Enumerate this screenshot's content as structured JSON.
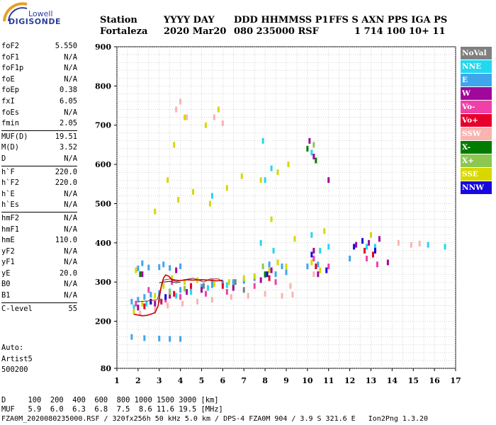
{
  "logo": {
    "line1": "Lowell",
    "line2": "DIGISONDE"
  },
  "header": {
    "labels": [
      "Station",
      "YYYY DAY",
      "DDD HHMMSS P1",
      "FFS S AXN PPS IGA PS"
    ],
    "values": [
      "Fortaleza",
      "2020 Mar20",
      "080 235000 RSF",
      "1 714 100 10+ 11"
    ]
  },
  "params": {
    "group1": [
      {
        "name": "foF2",
        "value": "5.550"
      },
      {
        "name": "foF1",
        "value": "N/A"
      },
      {
        "name": "foF1p",
        "value": "N/A"
      },
      {
        "name": "foE",
        "value": "N/A"
      },
      {
        "name": "foEp",
        "value": "0.38"
      },
      {
        "name": "fxI",
        "value": "6.05"
      },
      {
        "name": "foEs",
        "value": "N/A"
      },
      {
        "name": "fmin",
        "value": "2.05"
      }
    ],
    "group2": [
      {
        "name": "MUF(D)",
        "value": "19.51"
      },
      {
        "name": "M(D)",
        "value": "3.52"
      },
      {
        "name": "D",
        "value": "N/A"
      }
    ],
    "group3": [
      {
        "name": "h`F",
        "value": "220.0"
      },
      {
        "name": "h`F2",
        "value": "220.0"
      },
      {
        "name": "h`E",
        "value": "N/A"
      },
      {
        "name": "h`Es",
        "value": "N/A"
      }
    ],
    "group4": [
      {
        "name": "hmF2",
        "value": "N/A"
      },
      {
        "name": "hmF1",
        "value": "N/A"
      },
      {
        "name": "hmE",
        "value": "110.0"
      },
      {
        "name": "yF2",
        "value": "N/A"
      },
      {
        "name": "yF1",
        "value": "N/A"
      },
      {
        "name": "yE",
        "value": "20.0"
      },
      {
        "name": "B0",
        "value": "N/A"
      },
      {
        "name": "B1",
        "value": "N/A"
      }
    ],
    "group5": [
      {
        "name": "C-level",
        "value": "55"
      }
    ]
  },
  "auto": {
    "line1": "Auto:",
    "line2": "Artist5",
    "line3": "500200"
  },
  "legend": [
    {
      "label": "NoVal",
      "color": "#808080"
    },
    {
      "label": "NNE",
      "color": "#22d8f0"
    },
    {
      "label": "E",
      "color": "#3fa6ec"
    },
    {
      "label": "W",
      "color": "#a0089c"
    },
    {
      "label": "Vo-",
      "color": "#f040a8"
    },
    {
      "label": "Vo+",
      "color": "#e8002c"
    },
    {
      "label": "SSW",
      "color": "#f8b4b0"
    },
    {
      "label": "X-",
      "color": "#007c00"
    },
    {
      "label": "X+",
      "color": "#8cc850"
    },
    {
      "label": "SSE",
      "color": "#d8d800"
    },
    {
      "label": "NNW",
      "color": "#1808e0"
    }
  ],
  "footer": {
    "line1": "D     100  200  400  600  800 1000 1500 3000 [km]",
    "line2": "MUF   5.9  6.0  6.3  6.8  7.5  8.6 11.6 19.5 [MHz]",
    "line3": "FZA0M_2020080235000.RSF / 320fx256h 50 kHz 5.0 km / DPS-4 FZA0M 904 / 3.9 S 321.6 E   Ion2Png 1.3.20"
  },
  "chart_data": {
    "type": "scatter",
    "title": "",
    "xlabel": "",
    "ylabel": "",
    "xlim": [
      1,
      17
    ],
    "ylim": [
      80,
      900
    ],
    "xticks": [
      1,
      2,
      3,
      4,
      5,
      6,
      7,
      8,
      9,
      10,
      11,
      12,
      13,
      14,
      15,
      16,
      17
    ],
    "yticks": [
      80,
      200,
      300,
      400,
      500,
      600,
      700,
      800,
      900
    ],
    "grid": true,
    "legend_position": "right",
    "series": [
      {
        "name": "E",
        "points": [
          [
            1.7,
            250
          ],
          [
            2.0,
            255
          ],
          [
            2.3,
            262
          ],
          [
            2.6,
            268
          ],
          [
            3.0,
            272
          ],
          [
            3.5,
            276
          ],
          [
            4.0,
            280
          ],
          [
            4.5,
            284
          ],
          [
            5.0,
            288
          ],
          [
            5.5,
            292
          ],
          [
            6.0,
            297
          ],
          [
            6.5,
            300
          ],
          [
            7.0,
            303
          ],
          [
            7.5,
            310
          ],
          [
            8.0,
            318
          ],
          [
            8.5,
            320
          ],
          [
            9.0,
            325
          ],
          [
            10.0,
            340
          ],
          [
            10.5,
            345
          ],
          [
            1.7,
            160
          ],
          [
            2.3,
            157
          ],
          [
            3.0,
            156
          ],
          [
            3.5,
            155
          ],
          [
            4.0,
            155
          ],
          [
            2.0,
            335
          ],
          [
            2.5,
            337
          ],
          [
            3.0,
            338
          ],
          [
            3.5,
            336
          ],
          [
            4.0,
            340
          ],
          [
            2.2,
            348
          ],
          [
            3.2,
            345
          ],
          [
            5.5,
            300
          ],
          [
            6.5,
            290
          ],
          [
            8.2,
            345
          ],
          [
            8.8,
            340
          ],
          [
            12.0,
            360
          ]
        ]
      },
      {
        "name": "NNE",
        "points": [
          [
            1.8,
            235
          ],
          [
            2.4,
            245
          ],
          [
            3.0,
            255
          ],
          [
            3.8,
            265
          ],
          [
            4.5,
            275
          ],
          [
            5.3,
            285
          ],
          [
            6.2,
            292
          ],
          [
            7.8,
            400
          ],
          [
            8.4,
            380
          ],
          [
            10.2,
            420
          ],
          [
            10.6,
            380
          ],
          [
            8.0,
            560
          ],
          [
            8.3,
            590
          ],
          [
            10.2,
            630
          ],
          [
            11.0,
            390
          ],
          [
            12.8,
            390
          ],
          [
            13.2,
            390
          ],
          [
            15.7,
            395
          ],
          [
            16.5,
            390
          ],
          [
            7.9,
            660
          ],
          [
            5.5,
            520
          ]
        ]
      },
      {
        "name": "SSE",
        "points": [
          [
            1.8,
            225
          ],
          [
            2.2,
            245
          ],
          [
            2.8,
            265
          ],
          [
            3.2,
            290
          ],
          [
            3.6,
            310
          ],
          [
            4.2,
            300
          ],
          [
            4.8,
            305
          ],
          [
            5.6,
            295
          ],
          [
            6.3,
            300
          ],
          [
            7.0,
            310
          ],
          [
            7.5,
            315
          ],
          [
            8.2,
            330
          ],
          [
            8.6,
            350
          ],
          [
            9.0,
            340
          ],
          [
            10.2,
            350
          ],
          [
            10.6,
            330
          ],
          [
            3.4,
            560
          ],
          [
            3.9,
            510
          ],
          [
            4.6,
            530
          ],
          [
            5.4,
            500
          ],
          [
            6.2,
            540
          ],
          [
            6.9,
            570
          ],
          [
            7.8,
            560
          ],
          [
            8.6,
            580
          ],
          [
            9.1,
            600
          ],
          [
            3.7,
            650
          ],
          [
            4.2,
            720
          ],
          [
            5.2,
            700
          ],
          [
            5.8,
            740
          ],
          [
            2.8,
            480
          ],
          [
            1.9,
            330
          ],
          [
            8.3,
            460
          ],
          [
            9.4,
            410
          ],
          [
            13.0,
            420
          ],
          [
            10.8,
            430
          ]
        ]
      },
      {
        "name": "SSW",
        "points": [
          [
            2.1,
            220
          ],
          [
            2.8,
            230
          ],
          [
            3.4,
            240
          ],
          [
            4.1,
            245
          ],
          [
            4.8,
            250
          ],
          [
            5.5,
            255
          ],
          [
            6.4,
            262
          ],
          [
            7.2,
            265
          ],
          [
            8.0,
            270
          ],
          [
            8.8,
            265
          ],
          [
            9.3,
            268
          ],
          [
            10.3,
            320
          ],
          [
            14.3,
            400
          ],
          [
            14.9,
            395
          ],
          [
            15.3,
            398
          ],
          [
            4.0,
            760
          ],
          [
            3.8,
            740
          ],
          [
            4.3,
            720
          ],
          [
            5.6,
            720
          ],
          [
            6.0,
            705
          ],
          [
            9.2,
            290
          ]
        ]
      },
      {
        "name": "Vo-",
        "points": [
          [
            1.9,
            245
          ],
          [
            2.6,
            250
          ],
          [
            3.3,
            255
          ],
          [
            4.0,
            262
          ],
          [
            5.2,
            270
          ],
          [
            6.2,
            275
          ],
          [
            7.5,
            290
          ],
          [
            8.5,
            300
          ],
          [
            10.3,
            360
          ],
          [
            11.0,
            340
          ],
          [
            12.8,
            360
          ],
          [
            13.3,
            345
          ],
          [
            2.5,
            280
          ],
          [
            3.6,
            300
          ]
        ]
      },
      {
        "name": "Vo+",
        "points": [
          [
            2.3,
            238
          ],
          [
            3.1,
            250
          ],
          [
            3.7,
            270
          ],
          [
            4.5,
            290
          ],
          [
            6.0,
            290
          ],
          [
            8.2,
            310
          ],
          [
            10.4,
            340
          ],
          [
            12.7,
            380
          ],
          [
            13.1,
            370
          ]
        ]
      },
      {
        "name": "W",
        "points": [
          [
            2.0,
            235
          ],
          [
            2.8,
            245
          ],
          [
            3.5,
            265
          ],
          [
            4.3,
            275
          ],
          [
            5.0,
            280
          ],
          [
            6.5,
            285
          ],
          [
            7.8,
            305
          ],
          [
            8.3,
            330
          ],
          [
            10.3,
            380
          ],
          [
            10.5,
            320
          ],
          [
            10.1,
            660
          ],
          [
            10.3,
            620
          ],
          [
            11.0,
            560
          ],
          [
            12.3,
            395
          ],
          [
            12.9,
            400
          ],
          [
            13.4,
            410
          ],
          [
            13.8,
            350
          ],
          [
            2.2,
            320
          ],
          [
            3.8,
            330
          ]
        ]
      },
      {
        "name": "NNW",
        "points": [
          [
            2.6,
            250
          ],
          [
            3.3,
            262
          ],
          [
            8.1,
            320
          ],
          [
            10.2,
            370
          ],
          [
            10.9,
            330
          ],
          [
            12.2,
            390
          ],
          [
            12.6,
            405
          ],
          [
            13.2,
            380
          ]
        ]
      },
      {
        "name": "X-",
        "points": [
          [
            8.0,
            320
          ],
          [
            10.0,
            640
          ],
          [
            10.4,
            610
          ],
          [
            2.1,
            320
          ]
        ]
      },
      {
        "name": "X+",
        "points": [
          [
            3.5,
            275
          ],
          [
            4.2,
            283
          ],
          [
            7.9,
            340
          ],
          [
            10.3,
            650
          ]
        ]
      },
      {
        "name": "NoVal",
        "points": [
          [
            5.1,
            290
          ],
          [
            6.6,
            300
          ],
          [
            7.0,
            280
          ]
        ]
      }
    ],
    "trace": {
      "color": "#c80000",
      "points": [
        [
          1.8,
          218
        ],
        [
          2.0,
          216
        ],
        [
          2.2,
          214
        ],
        [
          2.4,
          215
        ],
        [
          2.6,
          218
        ],
        [
          2.8,
          222
        ],
        [
          2.95,
          240
        ],
        [
          3.0,
          260
        ],
        [
          3.1,
          290
        ],
        [
          3.2,
          310
        ],
        [
          3.3,
          318
        ],
        [
          3.45,
          315
        ],
        [
          3.6,
          306
        ],
        [
          3.8,
          302
        ],
        [
          4.0,
          304
        ],
        [
          4.3,
          306
        ],
        [
          4.6,
          305
        ],
        [
          5.0,
          306
        ],
        [
          5.3,
          305
        ],
        [
          5.55,
          304
        ],
        [
          5.7,
          303
        ],
        [
          5.9,
          304
        ],
        [
          6.0,
          305
        ]
      ]
    },
    "envelopes": [
      {
        "color": "#8a3030",
        "points": [
          [
            2.0,
            250
          ],
          [
            2.5,
            252
          ],
          [
            2.9,
            255
          ],
          [
            3.05,
            280
          ],
          [
            3.2,
            305
          ],
          [
            3.5,
            308
          ],
          [
            4.0,
            304
          ],
          [
            4.6,
            310
          ],
          [
            5.1,
            300
          ],
          [
            5.4,
            308
          ],
          [
            5.8,
            308
          ],
          [
            6.0,
            300
          ]
        ]
      },
      {
        "color": "#1a1a1a",
        "points": [
          [
            3.0,
            298
          ],
          [
            3.2,
            300
          ],
          [
            3.5,
            302
          ],
          [
            3.8,
            298
          ],
          [
            4.0,
            300
          ]
        ]
      }
    ]
  }
}
